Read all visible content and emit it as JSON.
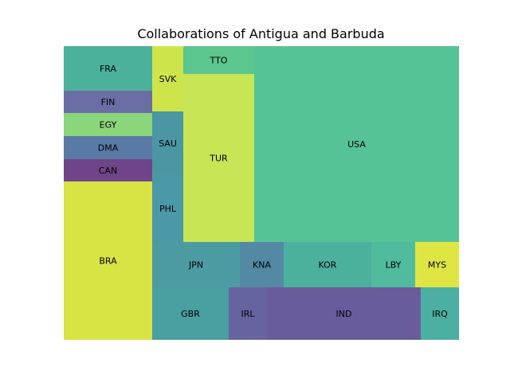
{
  "chart_data": {
    "type": "treemap",
    "title": "Collaborations of Antigua and Barbuda",
    "cells": [
      {
        "label": "FRA",
        "value": 42,
        "color": "#4bb19a"
      },
      {
        "label": "FIN",
        "value": 21,
        "color": "#6b6da5"
      },
      {
        "label": "EGY",
        "value": 21,
        "color": "#8bd57a"
      },
      {
        "label": "DMA",
        "value": 21,
        "color": "#5a7aa6"
      },
      {
        "label": "CAN",
        "value": 21,
        "color": "#6f4489"
      },
      {
        "label": "BRA",
        "value": 147,
        "color": "#d8e344"
      },
      {
        "label": "SVK",
        "value": 21,
        "color": "#cde54b"
      },
      {
        "label": "SAU",
        "value": 21,
        "color": "#4b96a3"
      },
      {
        "label": "PHL",
        "value": 21,
        "color": "#4b99a6"
      },
      {
        "label": "TTO",
        "value": 21,
        "color": "#5bc68d"
      },
      {
        "label": "TUR",
        "value": 147,
        "color": "#c7e555"
      },
      {
        "label": "USA",
        "value": 420,
        "color": "#56c396"
      },
      {
        "label": "JPN",
        "value": 42,
        "color": "#4c9ba3"
      },
      {
        "label": "KNA",
        "value": 21,
        "color": "#5489a3"
      },
      {
        "label": "KOR",
        "value": 42,
        "color": "#4bb19d"
      },
      {
        "label": "LBY",
        "value": 21,
        "color": "#51bb9d"
      },
      {
        "label": "MYS",
        "value": 21,
        "color": "#dfe644"
      },
      {
        "label": "GBR",
        "value": 42,
        "color": "#4a9fa1"
      },
      {
        "label": "IRL",
        "value": 21,
        "color": "#6763a0"
      },
      {
        "label": "IND",
        "value": 84,
        "color": "#6a5b9d"
      },
      {
        "label": "IRQ",
        "value": 21,
        "color": "#4bb0a2"
      }
    ]
  }
}
